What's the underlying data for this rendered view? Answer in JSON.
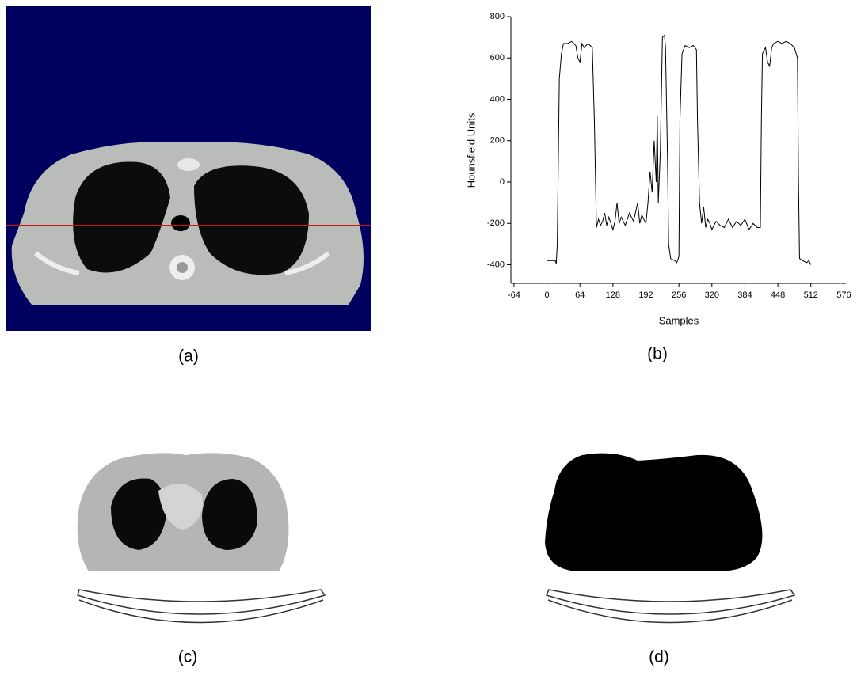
{
  "captions": [
    "(a)",
    "(b)",
    "(c)",
    "(d)"
  ],
  "chart_data": {
    "type": "line",
    "xlabel": "Samples",
    "ylabel": "Hounsfield Units",
    "color": "#000000",
    "x": [
      0,
      8,
      16,
      18,
      20,
      24,
      28,
      32,
      40,
      48,
      56,
      60,
      64,
      68,
      72,
      80,
      88,
      92,
      96,
      100,
      104,
      108,
      112,
      116,
      120,
      128,
      132,
      136,
      140,
      144,
      152,
      160,
      168,
      176,
      180,
      184,
      192,
      196,
      200,
      204,
      208,
      212,
      214,
      216,
      220,
      224,
      228,
      230,
      234,
      236,
      240,
      248,
      252,
      256,
      258,
      262,
      268,
      276,
      284,
      290,
      292,
      296,
      300,
      304,
      308,
      312,
      316,
      320,
      328,
      336,
      344,
      352,
      360,
      368,
      376,
      384,
      392,
      400,
      408,
      414,
      416,
      418,
      424,
      428,
      432,
      436,
      440,
      448,
      456,
      464,
      472,
      480,
      486,
      488,
      490,
      496,
      504,
      508,
      512
    ],
    "values": [
      -380,
      -380,
      -380,
      -395,
      -300,
      500,
      620,
      670,
      670,
      680,
      660,
      600,
      580,
      670,
      650,
      670,
      650,
      300,
      -220,
      -180,
      -210,
      -190,
      -150,
      -210,
      -170,
      -230,
      -190,
      -100,
      -200,
      -170,
      -210,
      -150,
      -190,
      -100,
      -200,
      -160,
      -200,
      -100,
      50,
      -50,
      200,
      0,
      320,
      -100,
      150,
      700,
      710,
      650,
      100,
      -300,
      -370,
      -380,
      -390,
      -360,
      300,
      620,
      660,
      650,
      660,
      640,
      300,
      -100,
      -200,
      -120,
      -220,
      -180,
      -200,
      -230,
      -190,
      -210,
      -220,
      -180,
      -220,
      -190,
      -210,
      -180,
      -230,
      -200,
      -220,
      -220,
      300,
      620,
      650,
      580,
      560,
      650,
      670,
      680,
      670,
      680,
      670,
      650,
      600,
      0,
      -370,
      -380,
      -390,
      -380,
      -400
    ],
    "xlim": [
      -70,
      580
    ],
    "ylim": [
      -490,
      800
    ],
    "xticks": [
      -64,
      0,
      64,
      128,
      192,
      256,
      320,
      384,
      448,
      512,
      576
    ],
    "yticks": [
      -400,
      -200,
      0,
      200,
      400,
      600,
      800
    ]
  }
}
